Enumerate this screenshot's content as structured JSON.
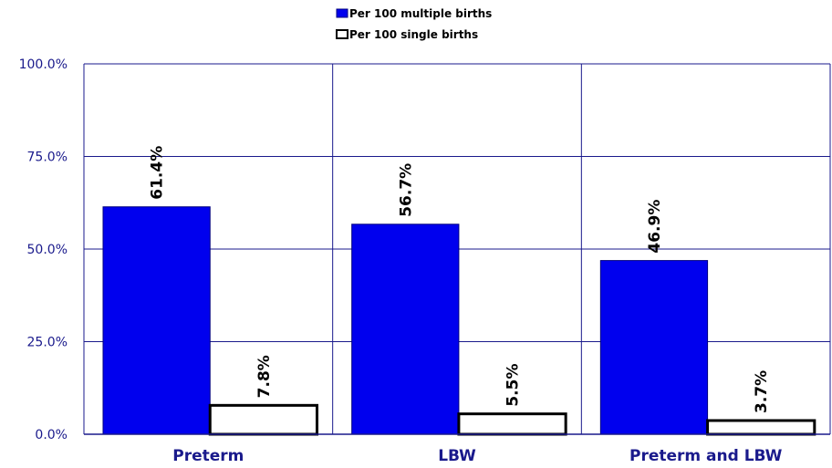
{
  "chart_data": {
    "type": "bar",
    "title": "",
    "xlabel": "",
    "ylabel": "",
    "categories": [
      "Preterm",
      "LBW",
      "Preterm and LBW"
    ],
    "series": [
      {
        "name": "Per 100 multiple births",
        "values": [
          61.4,
          56.7,
          46.9
        ],
        "labels": [
          "61.4%",
          "56.7%",
          "46.9%"
        ],
        "color": "#0000ee",
        "stroke": "#000080"
      },
      {
        "name": "Per 100 single births",
        "values": [
          7.8,
          5.5,
          3.7
        ],
        "labels": [
          "7.8%",
          "5.5%",
          "3.7%"
        ],
        "color": "#ffffff",
        "stroke": "#000000"
      }
    ],
    "ylim": [
      0,
      100
    ],
    "yticks": [
      0,
      25,
      50,
      75,
      100
    ],
    "ytick_labels": [
      "0.0%",
      "25.0%",
      "50.0%",
      "75.0%",
      "100.0%"
    ],
    "grid": true,
    "gridColor": "#1a1a8c",
    "legend_position": "top-center"
  }
}
